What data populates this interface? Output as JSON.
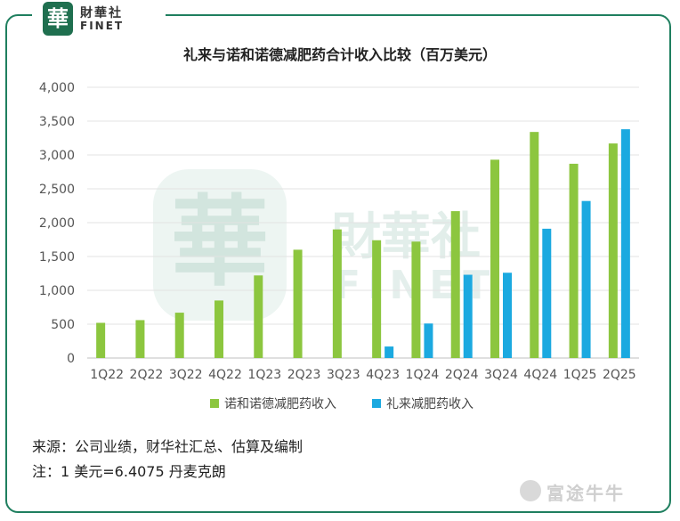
{
  "logo": {
    "cn": "財華社",
    "en": "FINET",
    "seal": "華"
  },
  "watermark": {
    "cn": "財華社",
    "en": "FINET",
    "seal": "華"
  },
  "chart_data": {
    "type": "bar",
    "title": "礼来与诺和诺德减肥药合计收入比较（百万美元）",
    "xlabel": "",
    "ylabel": "",
    "ylim": [
      0,
      4000
    ],
    "yticks": [
      0,
      500,
      1000,
      1500,
      2000,
      2500,
      3000,
      3500,
      4000
    ],
    "ytick_labels": [
      "0",
      "500",
      "1,000",
      "1,500",
      "2,000",
      "2,500",
      "3,000",
      "3,500",
      "4,000"
    ],
    "grid": true,
    "legend_position": "bottom",
    "categories": [
      "1Q22",
      "2Q22",
      "3Q22",
      "4Q22",
      "1Q23",
      "2Q23",
      "3Q23",
      "4Q23",
      "1Q24",
      "2Q24",
      "3Q24",
      "4Q24",
      "1Q25",
      "2Q25"
    ],
    "series": [
      {
        "name": "诺和诺德减肥药收入",
        "color": "#8cc63f",
        "values": [
          520,
          560,
          670,
          850,
          1220,
          1600,
          1900,
          1740,
          1720,
          2170,
          2930,
          3340,
          2870,
          3170
        ]
      },
      {
        "name": "礼来减肥药收入",
        "color": "#1ba9e0",
        "values": [
          null,
          null,
          null,
          null,
          null,
          null,
          null,
          170,
          510,
          1230,
          1260,
          1910,
          2320,
          3380
        ]
      }
    ]
  },
  "notes": {
    "source": "来源：公司业绩，财华社汇总、估算及编制",
    "fx": "注：1 美元=6.4075 丹麦克朗"
  },
  "brand": {
    "name": "富途牛牛",
    "icon": "futu-logo-icon"
  }
}
